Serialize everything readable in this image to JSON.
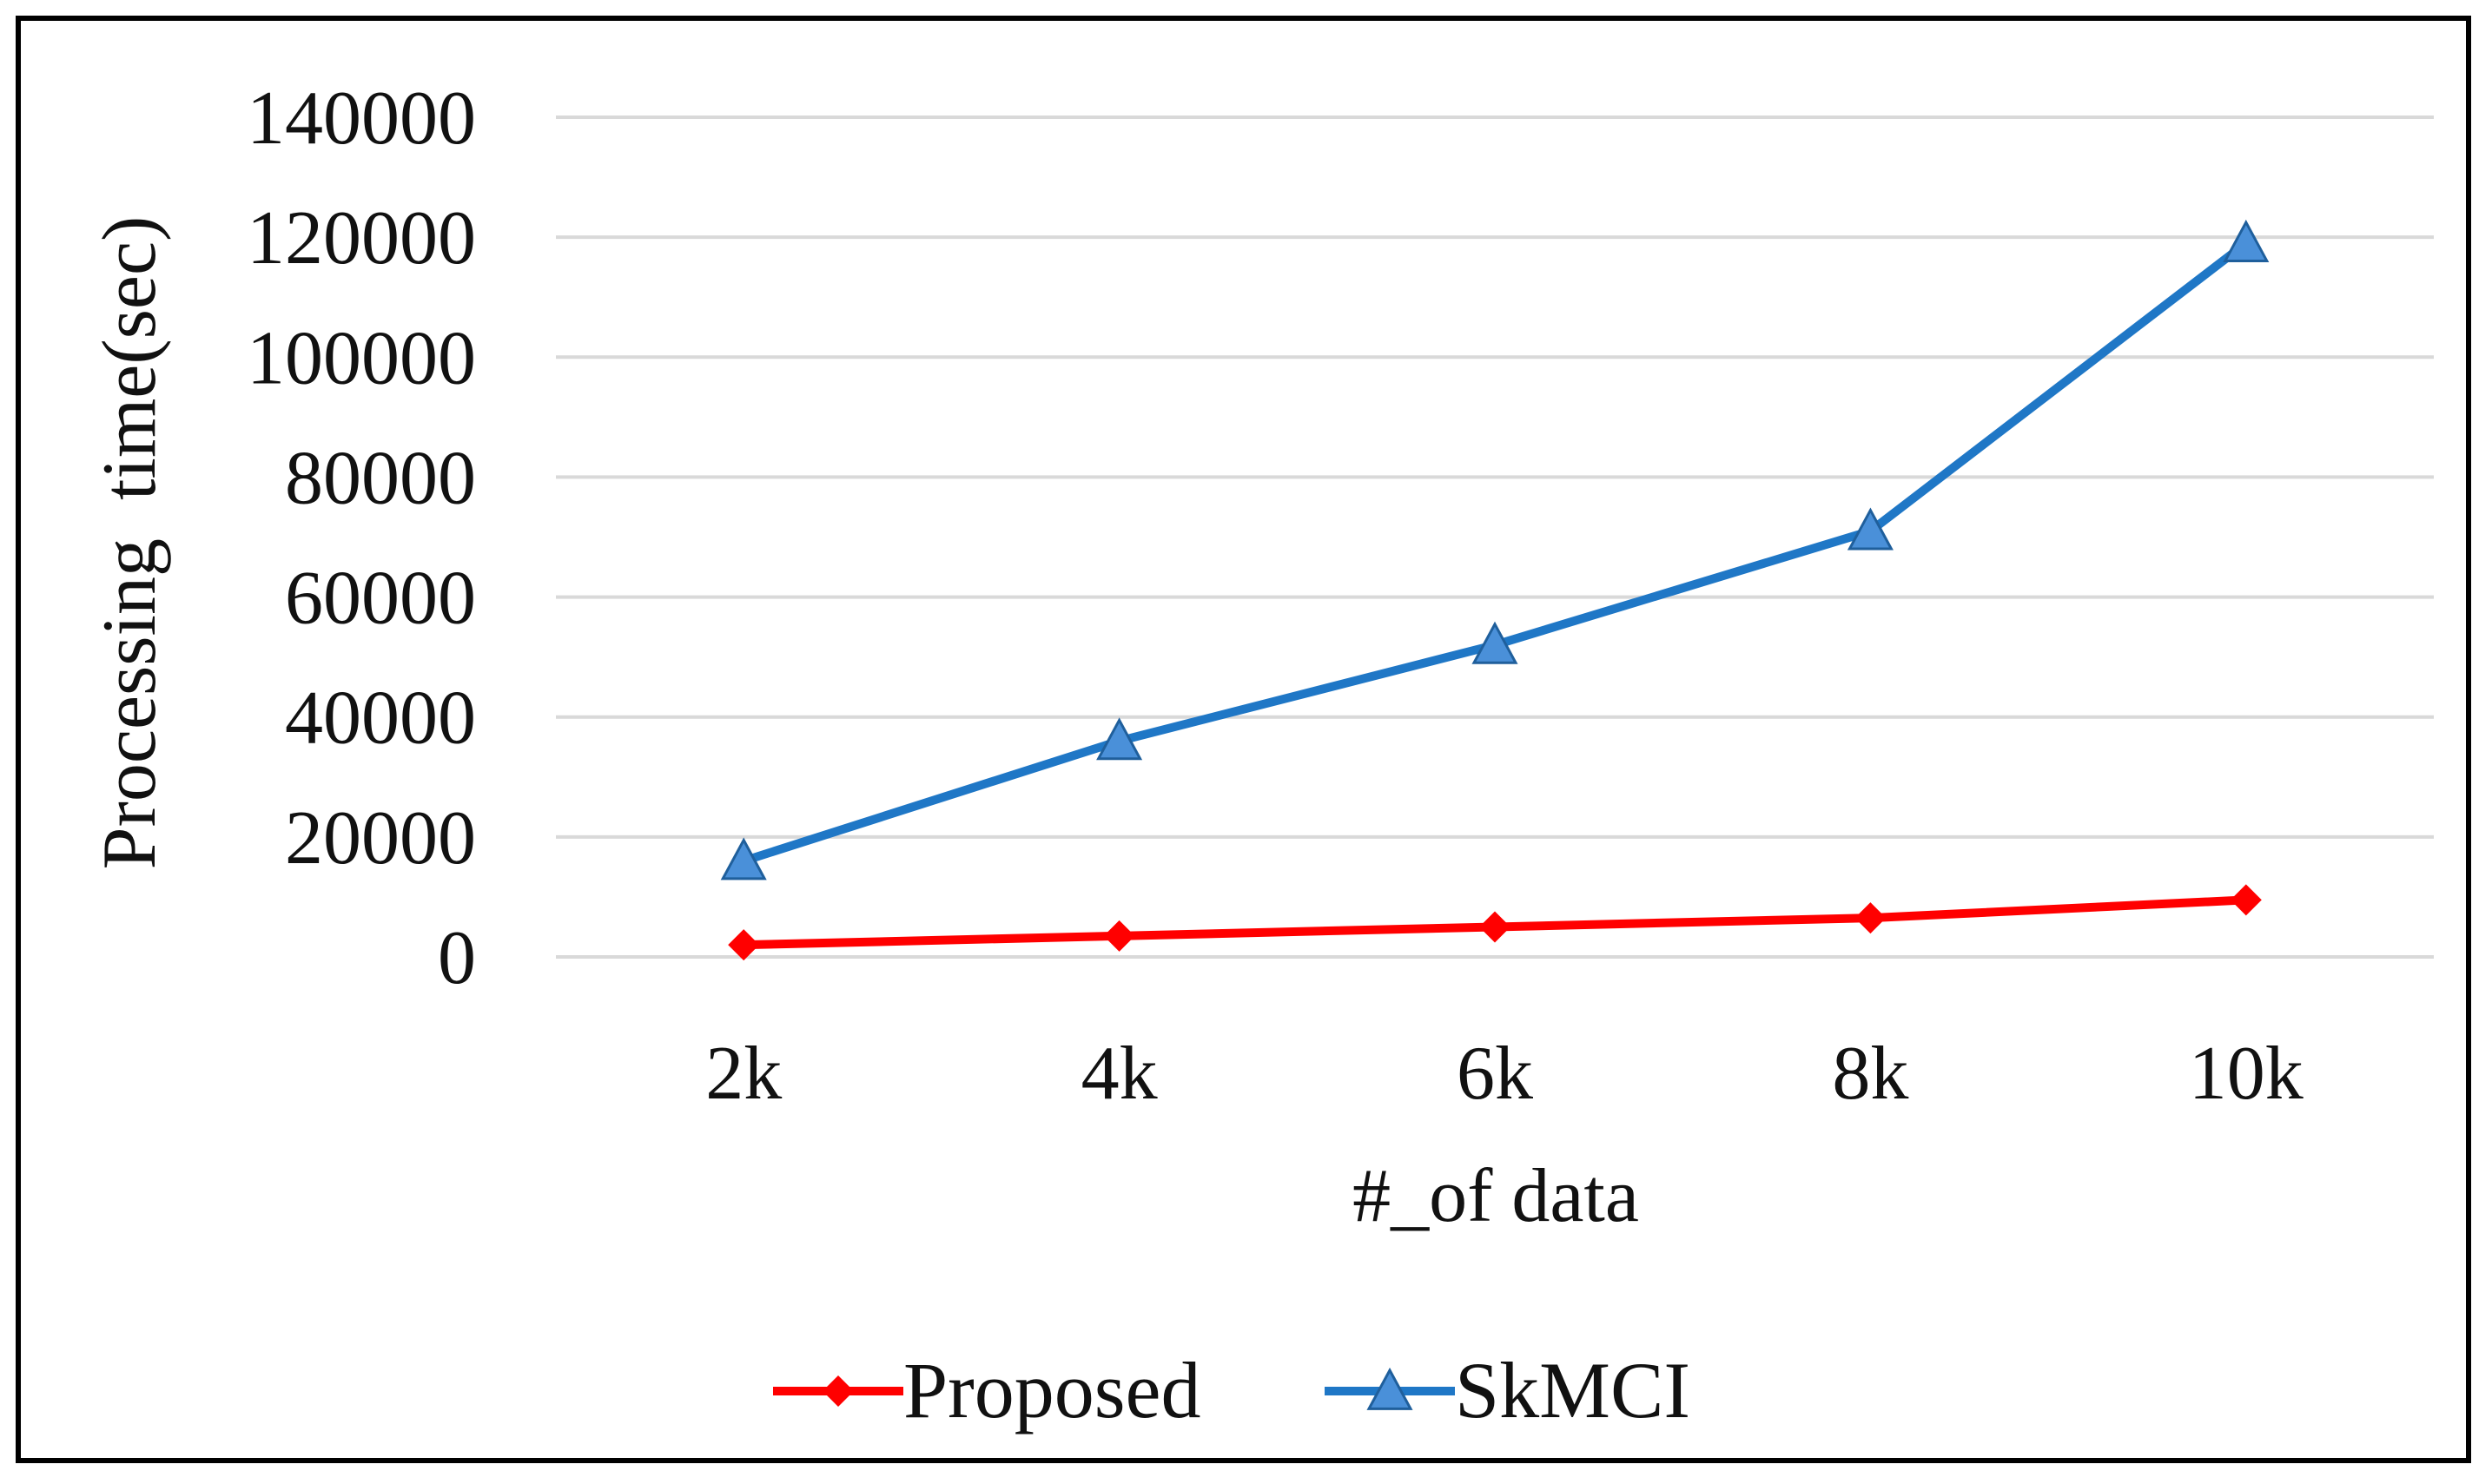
{
  "chart_data": {
    "type": "line",
    "categories": [
      "2k",
      "4k",
      "6k",
      "8k",
      "10k"
    ],
    "series": [
      {
        "name": "Proposed",
        "values": [
          2000,
          3500,
          5000,
          6500,
          9500
        ],
        "color": "#ff0000",
        "marker": "diamond"
      },
      {
        "name": "SkMCI",
        "values": [
          16000,
          36000,
          52000,
          71000,
          119000
        ],
        "color": "#1f77c6",
        "marker": "triangle"
      }
    ],
    "xlabel": "#_of data",
    "ylabel": "Processing  time(sec)",
    "ylim": [
      0,
      140000
    ],
    "yticks": [
      0,
      20000,
      40000,
      60000,
      80000,
      100000,
      120000,
      140000
    ],
    "grid": true,
    "legend_position": "bottom"
  }
}
